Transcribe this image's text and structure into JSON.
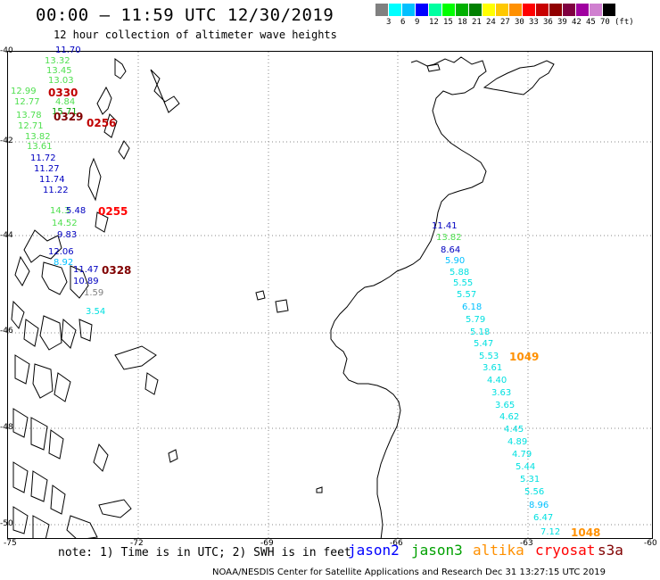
{
  "header": {
    "title": "00:00 – 11:59 UTC 12/30/2019",
    "subtitle": "12 hour collection of altimeter wave heights"
  },
  "color_scale": {
    "unit": "(ft)",
    "colors": [
      "#808080",
      "#00ffff",
      "#00c0ff",
      "#0000ff",
      "#00ffa0",
      "#00ff00",
      "#00b000",
      "#008000",
      "#ffff00",
      "#ffc800",
      "#ff9000",
      "#ff0000",
      "#c80000",
      "#900000",
      "#800040",
      "#a000a0",
      "#d080d0",
      "#000000"
    ],
    "labels": [
      "3",
      "6",
      "9",
      "12",
      "15",
      "18",
      "21",
      "24",
      "27",
      "30",
      "33",
      "36",
      "39",
      "42",
      "45",
      "70"
    ]
  },
  "axes": {
    "lat_labels": [
      "-40",
      "-42",
      "-44",
      "-46",
      "-48",
      "-50"
    ],
    "lon_labels": [
      "-75",
      "-72",
      "-69",
      "-66",
      "-63",
      "-60"
    ]
  },
  "observations": {
    "west_track": [
      {
        "v": "11.70",
        "c": "#0000c0"
      },
      {
        "v": "13.32",
        "c": "#50e050"
      },
      {
        "v": "13.45",
        "c": "#50e050"
      },
      {
        "v": "13.03",
        "c": "#50e050"
      },
      {
        "v": "12.99",
        "c": "#50e050"
      },
      {
        "v": "12.77",
        "c": "#50e050"
      },
      {
        "v": "4.84",
        "c": "#50e050"
      },
      {
        "v": "15.71",
        "c": "#00a000"
      },
      {
        "v": "13.78",
        "c": "#50e050"
      },
      {
        "v": "12.71",
        "c": "#50e050"
      },
      {
        "v": "13.82",
        "c": "#50e050"
      },
      {
        "v": "13.61",
        "c": "#50e050"
      },
      {
        "v": "11.72",
        "c": "#0000c0"
      },
      {
        "v": "11.27",
        "c": "#0000c0"
      },
      {
        "v": "11.74",
        "c": "#0000c0"
      },
      {
        "v": "11.22",
        "c": "#0000c0"
      },
      {
        "v": "14.3",
        "c": "#50e050"
      },
      {
        "v": "5.48",
        "c": "#0000c0"
      },
      {
        "v": "14.52",
        "c": "#50e050"
      },
      {
        "v": "9.83",
        "c": "#0000c0"
      },
      {
        "v": "12.06",
        "c": "#0000c0"
      },
      {
        "v": "8.92",
        "c": "#00c0ff"
      },
      {
        "v": "11.47",
        "c": "#0000c0"
      },
      {
        "v": "10.89",
        "c": "#0000c0"
      },
      {
        "v": "1.59",
        "c": "#808080"
      },
      {
        "v": "3.54",
        "c": "#00e0e0"
      }
    ],
    "west_times": [
      {
        "t": "0330",
        "c": "#c00000"
      },
      {
        "t": "0329",
        "c": "#800000"
      },
      {
        "t": "0256",
        "c": "#c00000"
      },
      {
        "t": "0255",
        "c": "#ff0000"
      },
      {
        "t": "0328",
        "c": "#800000"
      }
    ],
    "east_track": [
      {
        "v": "11.41",
        "c": "#0000c0"
      },
      {
        "v": "13.82",
        "c": "#50e050"
      },
      {
        "v": "8.64",
        "c": "#0000c0"
      },
      {
        "v": "5.90",
        "c": "#00c0ff"
      },
      {
        "v": "5.88",
        "c": "#00e0e0"
      },
      {
        "v": "5.55",
        "c": "#00e0e0"
      },
      {
        "v": "5.57",
        "c": "#00e0e0"
      },
      {
        "v": "6.18",
        "c": "#00c0ff"
      },
      {
        "v": "5.79",
        "c": "#00e0e0"
      },
      {
        "v": "5.18",
        "c": "#00e0e0"
      },
      {
        "v": "5.47",
        "c": "#00e0e0"
      },
      {
        "v": "5.53",
        "c": "#00e0e0"
      },
      {
        "v": "3.61",
        "c": "#00e0e0"
      },
      {
        "v": "4.40",
        "c": "#00e0e0"
      },
      {
        "v": "3.63",
        "c": "#00e0e0"
      },
      {
        "v": "3.65",
        "c": "#00e0e0"
      },
      {
        "v": "4.62",
        "c": "#00e0e0"
      },
      {
        "v": "4.45",
        "c": "#00e0e0"
      },
      {
        "v": "4.89",
        "c": "#00e0e0"
      },
      {
        "v": "4.79",
        "c": "#00e0e0"
      },
      {
        "v": "5.44",
        "c": "#00e0e0"
      },
      {
        "v": "5.31",
        "c": "#00e0e0"
      },
      {
        "v": "5.56",
        "c": "#00e0e0"
      },
      {
        "v": "8.96",
        "c": "#00c0ff"
      },
      {
        "v": "6.47",
        "c": "#00e0e0"
      },
      {
        "v": "7.12",
        "c": "#00e0e0"
      }
    ],
    "east_times": [
      {
        "t": "1049",
        "c": "#ff9000"
      },
      {
        "t": "1048",
        "c": "#ff9000"
      }
    ]
  },
  "footer": {
    "note": "note: 1) Time is in UTC; 2) SWH is in feet",
    "legend": [
      {
        "name": "jason2",
        "color": "#0000ff"
      },
      {
        "name": "jason3",
        "color": "#00a000"
      },
      {
        "name": "altika",
        "color": "#ff9000"
      },
      {
        "name": "cryosat",
        "color": "#ff0000"
      },
      {
        "name": "s3a",
        "color": "#800000"
      }
    ],
    "credit": "NOAA/NESDIS Center for Satellite Applications and Research     Dec 31 13:27:15 UTC 2019"
  }
}
